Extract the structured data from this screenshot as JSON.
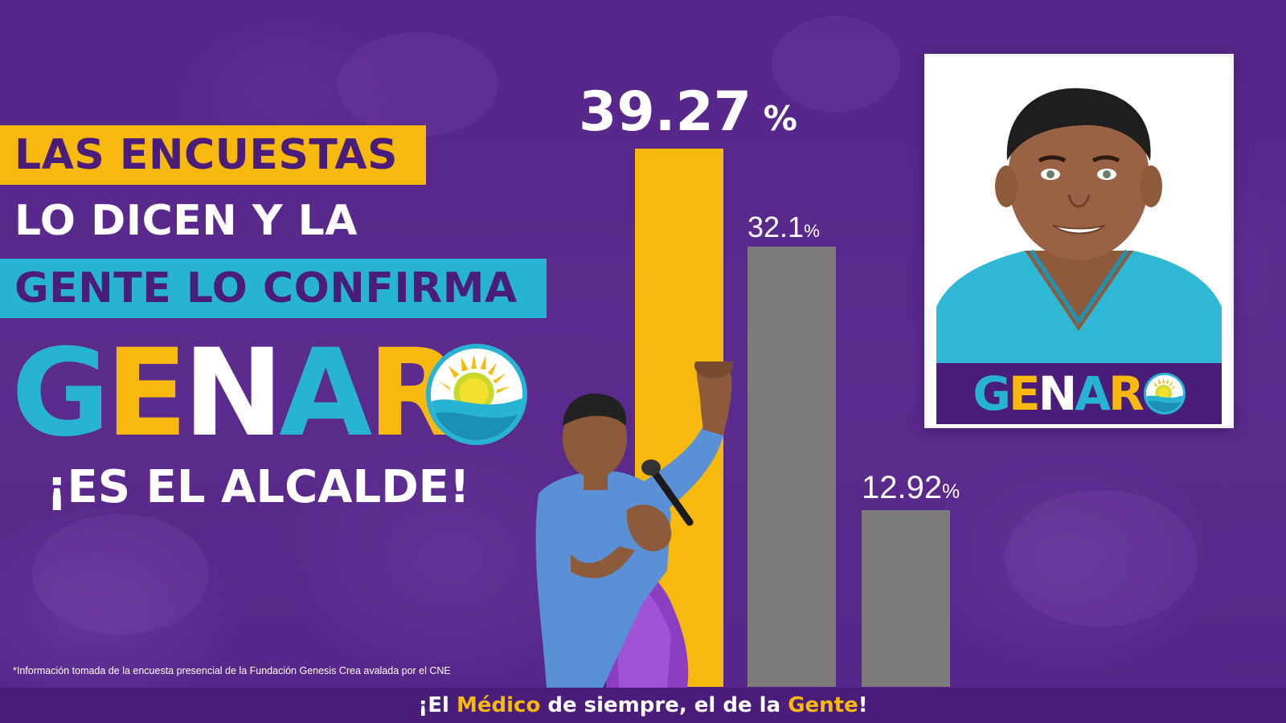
{
  "headline": {
    "line1": "LAS ENCUESTAS",
    "line2": "LO DICEN Y LA",
    "line3": "GENTE LO CONFIRMA"
  },
  "logo": {
    "letters": [
      "G",
      "E",
      "N",
      "A",
      "R"
    ],
    "emblem_icon": "sun-wave-emblem"
  },
  "tagline": "¡ES EL ALCALDE!",
  "footnote": "*Información tomada de la encuesta presencial de la Fundación Genesis Crea avalada por el CNE",
  "slogan": {
    "part1": "¡El ",
    "highlight1": "Médico",
    "part2": " de siempre, el de la ",
    "highlight2": "Gente",
    "part3": "!"
  },
  "chart_data": {
    "type": "bar",
    "title": "",
    "xlabel": "",
    "ylabel": "",
    "ylim": [
      0,
      39.27
    ],
    "values": [
      39.27,
      32.1,
      12.92
    ],
    "value_labels": [
      "39.27",
      "32.1",
      "12.92"
    ],
    "unit": "%",
    "colors": [
      "#f8b90f",
      "#7d7b7b",
      "#7d7b7b"
    ]
  },
  "colors": {
    "background": "#5a2a8a",
    "purple_dark": "#4b1d7a",
    "yellow": "#f8b90f",
    "cyan": "#27b3d4",
    "gray_bar": "#7d7b7b"
  },
  "images": {
    "candidate_action": "candidate-raising-fist-photo",
    "candidate_portrait": "candidate-portrait-photo"
  }
}
